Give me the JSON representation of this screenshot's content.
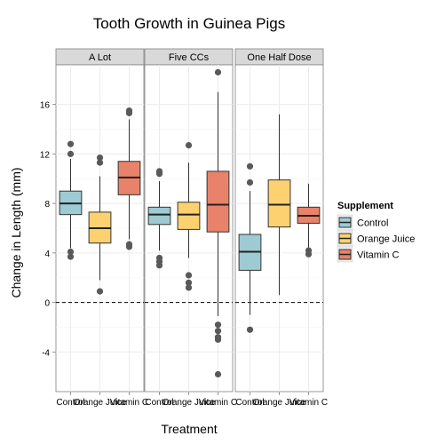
{
  "chart_data": {
    "type": "boxplot",
    "title": "Tooth Growth in Guinea Pigs",
    "xlabel": "Treatment",
    "ylabel": "Change in Length (mm)",
    "ylim": [
      -7.2,
      19.2
    ],
    "yticks": [
      -4,
      0,
      4,
      8,
      12,
      16
    ],
    "categories": [
      "Control",
      "Orange Juice",
      "Vitamin C"
    ],
    "facets": [
      "A Lot",
      "Five CCs",
      "One Half Dose"
    ],
    "reference_line": 0,
    "grid": true,
    "legend": {
      "title": "Supplement",
      "position": "right",
      "entries": [
        "Control",
        "Orange Juice",
        "Vitamin C"
      ]
    },
    "colors": {
      "Control": "#9ecad3",
      "Orange Juice": "#fdd170",
      "Vitamin C": "#e8826a"
    },
    "boxes": [
      {
        "facet": "A Lot",
        "group": "Control",
        "whisker_low": 4.4,
        "q1": 7.1,
        "median": 8.0,
        "q3": 9.0,
        "whisker_high": 11.6,
        "outliers": [
          12.8,
          12.0,
          4.1,
          3.7
        ]
      },
      {
        "facet": "A Lot",
        "group": "Orange Juice",
        "whisker_low": 1.8,
        "q1": 4.8,
        "median": 6.0,
        "q3": 7.3,
        "whisker_high": 10.2,
        "outliers": [
          11.7,
          11.3,
          0.9
        ]
      },
      {
        "facet": "A Lot",
        "group": "Vitamin C",
        "whisker_low": 5.1,
        "q1": 8.7,
        "median": 10.1,
        "q3": 11.4,
        "whisker_high": 14.8,
        "outliers": [
          15.5,
          15.3,
          4.7,
          4.5
        ]
      },
      {
        "facet": "Five CCs",
        "group": "Control",
        "whisker_low": 4.2,
        "q1": 6.3,
        "median": 7.1,
        "q3": 7.7,
        "whisker_high": 9.8,
        "outliers": [
          10.6,
          10.4,
          3.6,
          3.3,
          3.0
        ]
      },
      {
        "facet": "Five CCs",
        "group": "Orange Juice",
        "whisker_low": 3.6,
        "q1": 5.9,
        "median": 7.1,
        "q3": 8.1,
        "whisker_high": 11.3,
        "outliers": [
          12.7,
          2.2,
          1.6,
          1.2
        ]
      },
      {
        "facet": "Five CCs",
        "group": "Vitamin C",
        "whisker_low": -1.1,
        "q1": 5.7,
        "median": 7.9,
        "q3": 10.6,
        "whisker_high": 17.0,
        "outliers": [
          18.6,
          -1.8,
          -2.3,
          -2.8,
          -3.0,
          -5.8
        ]
      },
      {
        "facet": "One Half Dose",
        "group": "Control",
        "whisker_low": -1.0,
        "q1": 2.6,
        "median": 4.1,
        "q3": 5.5,
        "whisker_high": 9.0,
        "outliers": [
          11.0,
          9.7,
          -2.2
        ]
      },
      {
        "facet": "One Half Dose",
        "group": "Orange Juice",
        "whisker_low": 0.6,
        "q1": 6.1,
        "median": 7.9,
        "q3": 9.9,
        "whisker_high": 15.2,
        "outliers": []
      },
      {
        "facet": "One Half Dose",
        "group": "Vitamin C",
        "whisker_low": 4.4,
        "q1": 6.4,
        "median": 7.0,
        "q3": 7.7,
        "whisker_high": 9.6,
        "outliers": [
          4.2,
          3.9
        ]
      }
    ]
  }
}
